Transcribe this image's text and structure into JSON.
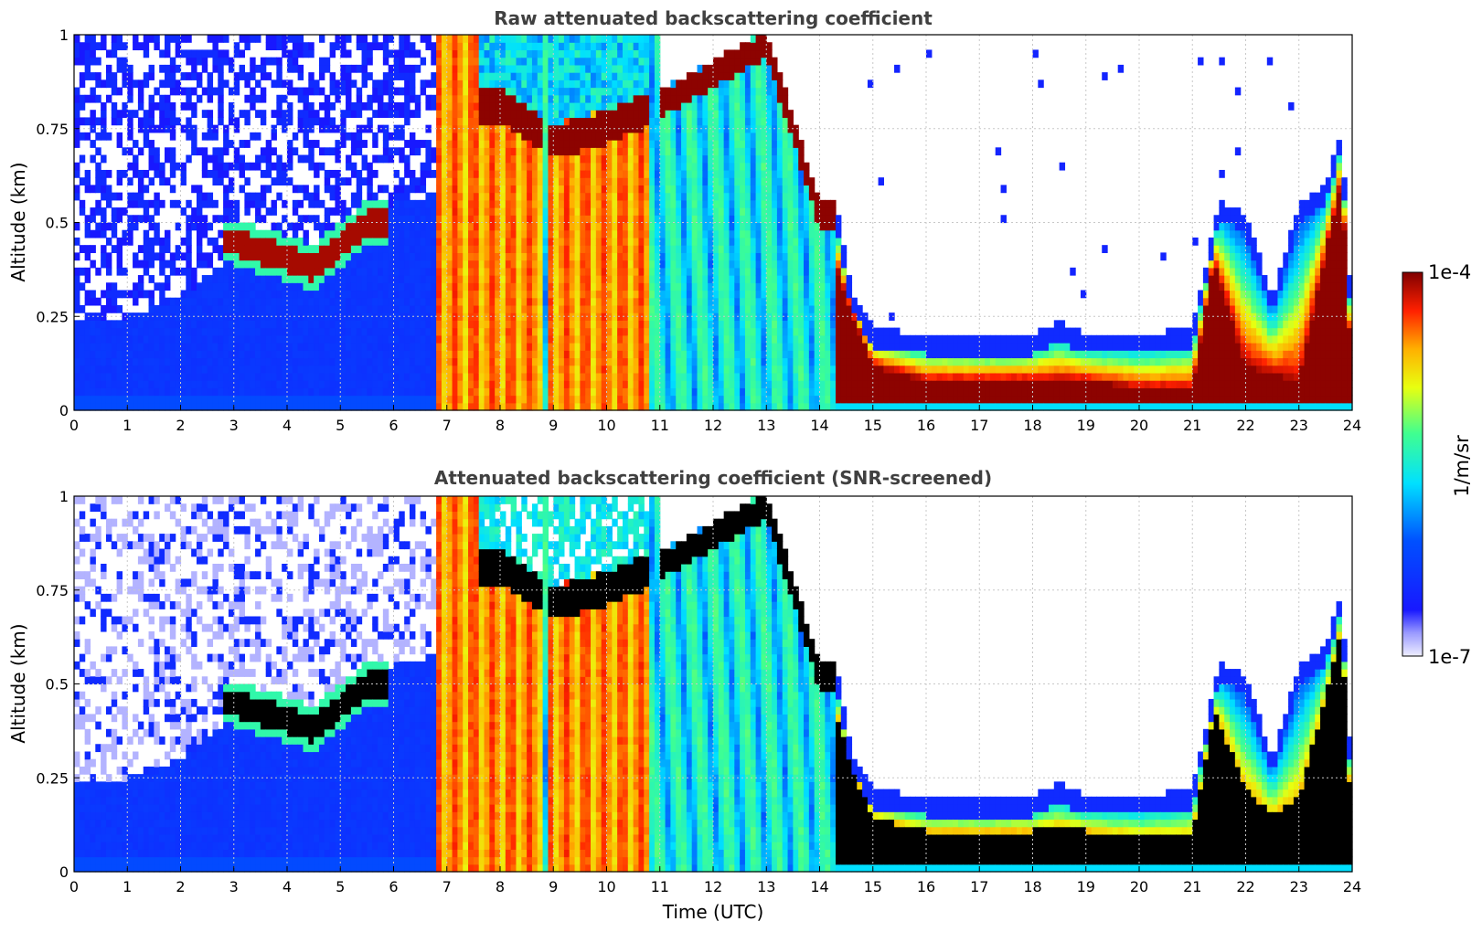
{
  "figure": {
    "panels": [
      {
        "id": "raw",
        "title": "Raw attenuated backscattering coefficient",
        "ylabel": "Altitude (km)",
        "xlabel": ""
      },
      {
        "id": "screened",
        "title": "Attenuated backscattering coefficient (SNR-screened)",
        "ylabel": "Altitude (km)",
        "xlabel": "Time (UTC)"
      }
    ],
    "colorbar": {
      "label": "1/m/sr",
      "max_label": "1e-4",
      "min_label": "1e-7",
      "colormap": "jet",
      "scale": "log"
    }
  },
  "chart_data": [
    {
      "type": "heatmap",
      "title": "Raw attenuated backscattering coefficient",
      "xlabel": "",
      "ylabel": "Altitude (km)",
      "xlim": [
        0,
        24
      ],
      "ylim": [
        0,
        1
      ],
      "x_ticks": [
        "0",
        "1",
        "2",
        "3",
        "4",
        "5",
        "6",
        "7",
        "8",
        "9",
        "10",
        "11",
        "12",
        "13",
        "14",
        "15",
        "16",
        "17",
        "18",
        "19",
        "20",
        "21",
        "22",
        "23",
        "24"
      ],
      "y_ticks": [
        "0",
        "0.25",
        "0.5",
        "0.75",
        "1"
      ],
      "grid": true,
      "colorbar_range": [
        1e-07,
        0.0001
      ],
      "color_scale": "log",
      "layers": {
        "layer_top_km": [
          [
            0,
            0.25
          ],
          [
            1,
            0.25
          ],
          [
            2,
            0.3
          ],
          [
            3,
            0.42
          ],
          [
            4,
            0.38
          ],
          [
            4.5,
            0.34
          ],
          [
            5,
            0.42
          ],
          [
            5.5,
            0.48
          ],
          [
            6,
            0.55
          ],
          [
            6.85,
            0.58
          ],
          [
            14.3,
            0.55
          ],
          [
            14.6,
            0.32
          ],
          [
            15,
            0.22
          ],
          [
            16,
            0.2
          ],
          [
            17,
            0.19
          ],
          [
            18,
            0.2
          ],
          [
            18.5,
            0.24
          ],
          [
            19,
            0.2
          ],
          [
            20,
            0.2
          ],
          [
            21,
            0.22
          ],
          [
            21.5,
            0.56
          ],
          [
            22,
            0.52
          ],
          [
            22.5,
            0.3
          ],
          [
            23,
            0.55
          ],
          [
            23.5,
            0.6
          ],
          [
            23.8,
            0.75
          ],
          [
            24,
            0.22
          ]
        ],
        "cloud_base_km": [
          [
            3,
            0.45
          ],
          [
            4.5,
            0.38
          ],
          [
            5,
            0.44
          ],
          [
            5.5,
            0.5
          ],
          [
            8,
            0.82
          ],
          [
            9,
            0.72
          ],
          [
            10,
            0.76
          ],
          [
            11,
            0.82
          ],
          [
            12,
            0.9
          ],
          [
            13,
            0.98
          ],
          [
            14.5,
            0.3
          ],
          [
            15,
            0.12
          ],
          [
            16,
            0.08
          ],
          [
            17,
            0.08
          ],
          [
            18,
            0.08
          ],
          [
            19,
            0.08
          ],
          [
            20,
            0.06
          ],
          [
            21,
            0.06
          ],
          [
            21.4,
            0.4
          ],
          [
            22,
            0.12
          ],
          [
            23,
            0.08
          ],
          [
            23.8,
            0.62
          ],
          [
            24,
            0.08
          ]
        ],
        "precipitation_intervals_utc": [
          [
            6.85,
            8.8
          ],
          [
            8.9,
            10.75
          ]
        ]
      }
    },
    {
      "type": "heatmap",
      "title": "Attenuated backscattering coefficient (SNR-screened)",
      "xlabel": "Time (UTC)",
      "ylabel": "Altitude (km)",
      "xlim": [
        0,
        24
      ],
      "ylim": [
        0,
        1
      ],
      "x_ticks": [
        "0",
        "1",
        "2",
        "3",
        "4",
        "5",
        "6",
        "7",
        "8",
        "9",
        "10",
        "11",
        "12",
        "13",
        "14",
        "15",
        "16",
        "17",
        "18",
        "19",
        "20",
        "21",
        "22",
        "23",
        "24"
      ],
      "y_ticks": [
        "0",
        "0.25",
        "0.5",
        "0.75",
        "1"
      ],
      "grid": true,
      "colorbar_range": [
        1e-07,
        0.0001
      ],
      "color_scale": "log",
      "saturated_color": "black"
    }
  ]
}
